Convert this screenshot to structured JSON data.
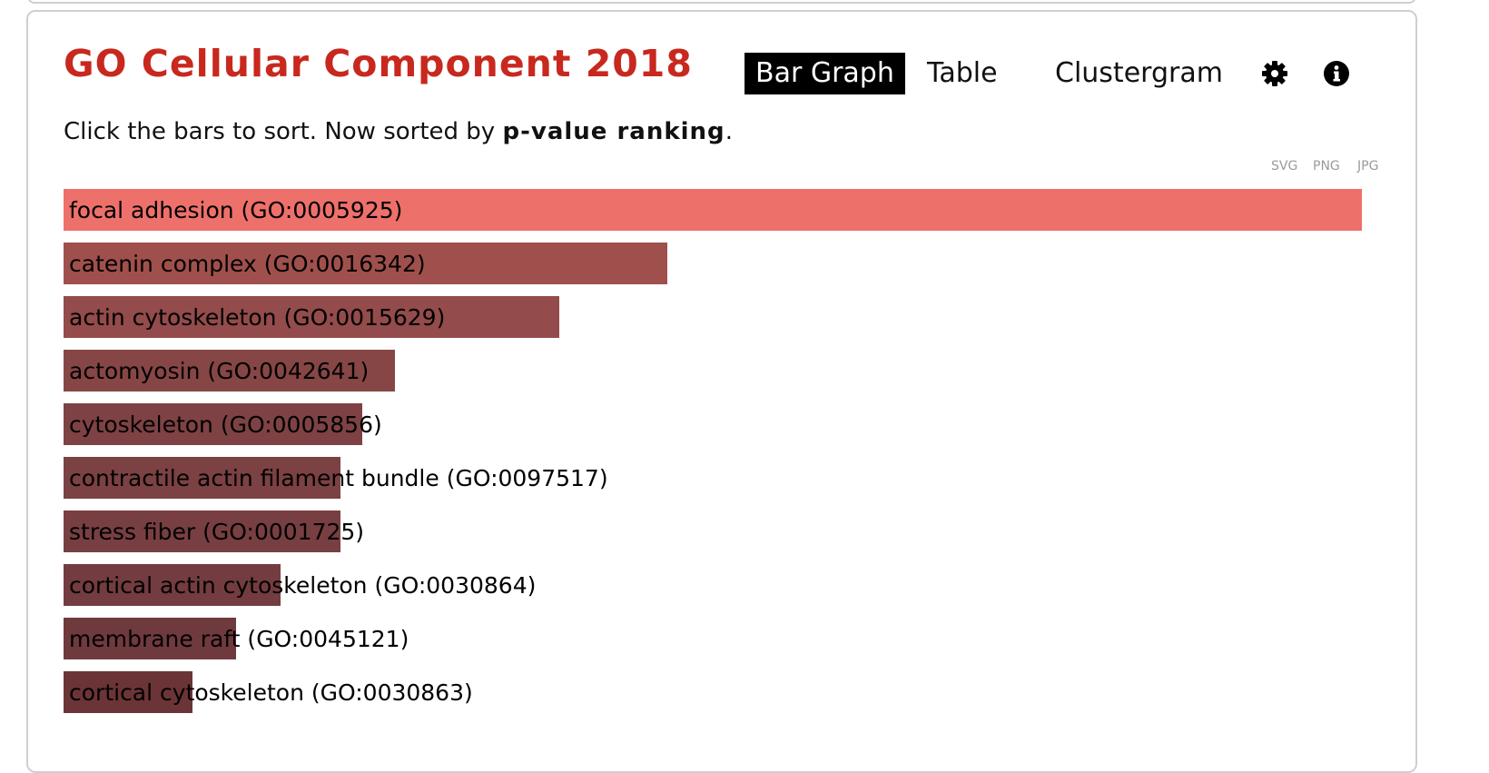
{
  "panel": {
    "title": "GO Cellular Component 2018",
    "tabs": [
      {
        "label": "Bar Graph",
        "active": true
      },
      {
        "label": "Table",
        "active": false
      },
      {
        "label": "Clustergram",
        "active": false
      }
    ],
    "icons": [
      "gear-icon",
      "info-icon"
    ],
    "subtitle_prefix": "Click the bars to sort. Now sorted by ",
    "subtitle_bold": "p-value ranking",
    "subtitle_suffix": ".",
    "export": [
      "SVG",
      "PNG",
      "JPG"
    ]
  },
  "colors": {
    "title": "#c8281e",
    "top_bar": "#ee706b",
    "bar_dark_start": "#a0504c",
    "bar_dark_end": "#6b3436"
  },
  "chart_data": {
    "type": "bar",
    "orientation": "horizontal",
    "sorted_by": "p-value ranking",
    "categories": [
      "focal adhesion (GO:0005925)",
      "catenin complex (GO:0016342)",
      "actin cytoskeleton (GO:0015629)",
      "actomyosin (GO:0042641)",
      "cytoskeleton (GO:0005856)",
      "contractile actin filament bundle (GO:0097517)",
      "stress fiber (GO:0001725)",
      "cortical actin cytoskeleton (GO:0030864)",
      "membrane raft (GO:0045121)",
      "cortical cytoskeleton (GO:0030863)"
    ],
    "values": [
      1.0,
      0.465,
      0.382,
      0.255,
      0.23,
      0.213,
      0.213,
      0.167,
      0.133,
      0.099
    ],
    "bar_colors": [
      "#ee706b",
      "#a0504c",
      "#934b4b",
      "#874646",
      "#7e4244",
      "#7b4143",
      "#783f42",
      "#733c40",
      "#6f3a3e",
      "#6b3436"
    ],
    "xlim": [
      0,
      1
    ]
  }
}
